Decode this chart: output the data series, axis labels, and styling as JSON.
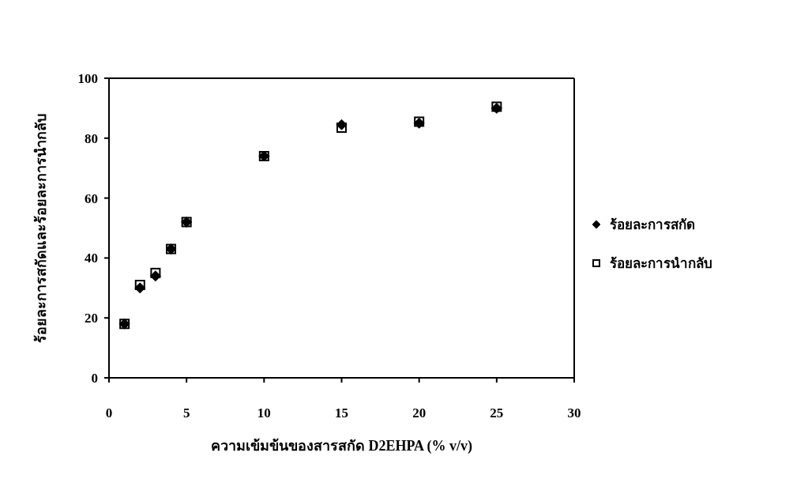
{
  "chart_data": {
    "type": "scatter",
    "xlabel": "ความเข้มข้นของสารสกัด D2EHPA (% v/v)",
    "ylabel": "ร้อยละการสกัดและร้อยละการนำกลับ",
    "x": [
      1,
      2,
      3,
      4,
      5,
      10,
      15,
      20,
      25
    ],
    "series": [
      {
        "name": "ร้อยละการสกัด",
        "color": "#000000",
        "marker": "diamond",
        "values": [
          18,
          30,
          34,
          43,
          52,
          74,
          84.5,
          85,
          90
        ]
      },
      {
        "name": "ร้อยละการนำกลับ",
        "color": "#000000",
        "marker": "square",
        "values": [
          18,
          31,
          35,
          43,
          52,
          74,
          83.5,
          85.5,
          90.5
        ]
      }
    ],
    "xlim": [
      0,
      30
    ],
    "xticks": [
      0,
      5,
      10,
      15,
      20,
      25,
      30
    ],
    "ylim": [
      0,
      100
    ],
    "yticks": [
      0,
      20,
      40,
      60,
      80,
      100
    ],
    "legend": "right"
  }
}
